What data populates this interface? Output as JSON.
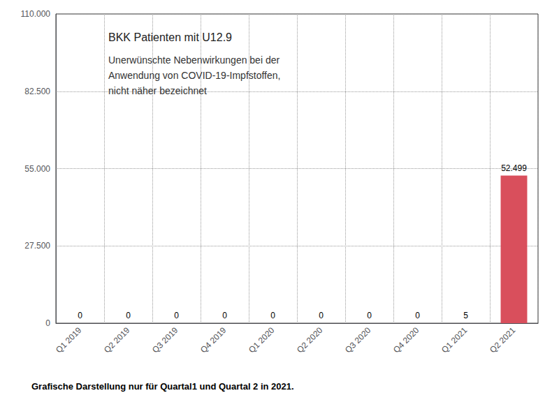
{
  "chart_data": {
    "type": "bar",
    "title": "BKK Patienten mit U12.9",
    "subtitle": "Unerwünschte Nebenwirkungen bei der\nAnwendung von COVID-19-Impfstoffen,\nnicht näher bezeichnet",
    "footnote": "Grafische Darstellung nur für Quartal1 und Quartal 2 in 2021.",
    "categories": [
      "Q1 2019",
      "Q2 2019",
      "Q3 2019",
      "Q4 2019",
      "Q1 2020",
      "Q2 2020",
      "Q3 2020",
      "Q4 2020",
      "Q1 2021",
      "Q2 2021"
    ],
    "values": [
      0,
      0,
      0,
      0,
      0,
      0,
      0,
      0,
      5,
      52499
    ],
    "value_labels": [
      "0",
      "0",
      "0",
      "0",
      "0",
      "0",
      "0",
      "0",
      "5",
      "52.499"
    ],
    "colors": [
      "#cccccc",
      "#cccccc",
      "#cccccc",
      "#cccccc",
      "#cccccc",
      "#cccccc",
      "#cccccc",
      "#cccccc",
      "#cccccc",
      "#d94f5c"
    ],
    "ylim": [
      0,
      110000
    ],
    "yticks": [
      0,
      {
        "value": 27500,
        "label": "27.500"
      },
      {
        "value": 55000,
        "label": "55.000"
      },
      {
        "value": 82500,
        "label": "82.500"
      },
      {
        "value": 110000,
        "label": "110.000"
      }
    ],
    "grid": true,
    "data_labels": true
  }
}
